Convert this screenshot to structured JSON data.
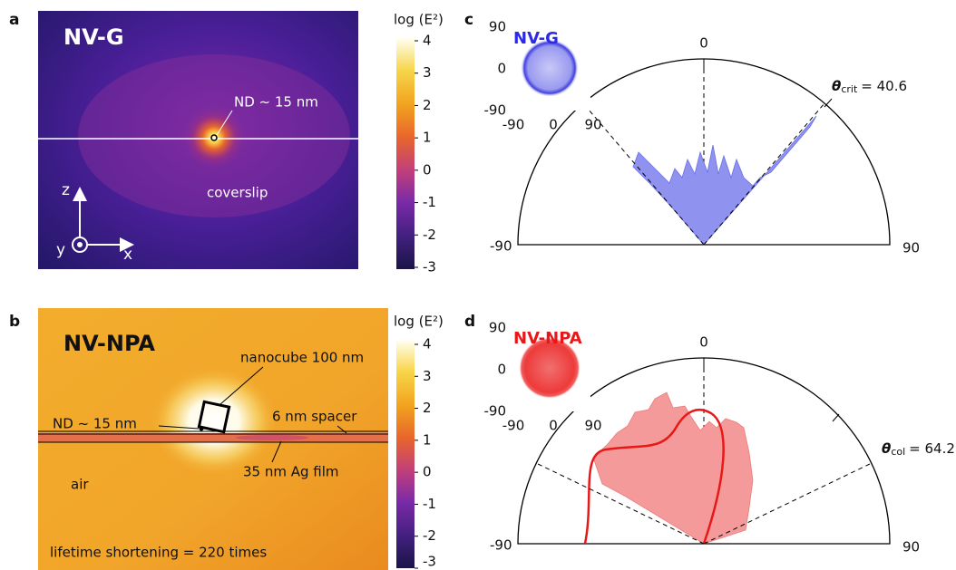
{
  "panels": [
    {
      "label": "a",
      "title": "NV-G",
      "colorbar": {
        "title": "log (E²)",
        "ticks": [
          4,
          3,
          2,
          1,
          0,
          -1,
          -2,
          -3
        ]
      },
      "annotations": {
        "nd": "ND ~ 15 nm",
        "medium": "coverslip"
      },
      "axes": {
        "z": "z",
        "y": "y",
        "x": "x"
      }
    },
    {
      "label": "b",
      "title": "NV-NPA",
      "colorbar": {
        "title": "log (E²)",
        "ticks": [
          4,
          3,
          2,
          1,
          0,
          -1,
          -2,
          -3
        ]
      },
      "annotations": {
        "nanocube": "nanocube 100 nm",
        "nd": "ND ~ 15 nm",
        "spacer": "6 nm spacer",
        "film": "35 nm Ag film",
        "air": "air",
        "lifetime": "lifetime shortening = 220 times"
      }
    },
    {
      "label": "c",
      "inset": {
        "title": "NV-G",
        "yticks": [
          90,
          0,
          -90
        ],
        "xticks": [
          -90,
          0,
          90
        ]
      },
      "polar": {
        "top": 0,
        "left": -90,
        "right": 90
      },
      "angle": {
        "symbol": "θ",
        "subscript": "crit",
        "text": "= 40.6"
      }
    },
    {
      "label": "d",
      "inset": {
        "title": "NV-NPA",
        "yticks": [
          90,
          0,
          -90
        ],
        "xticks": [
          -90,
          0,
          90
        ]
      },
      "polar": {
        "top": 0,
        "left": -90,
        "right": 90
      },
      "angle": {
        "symbol": "θ",
        "subscript": "col",
        "text": "= 64.2"
      }
    }
  ]
}
